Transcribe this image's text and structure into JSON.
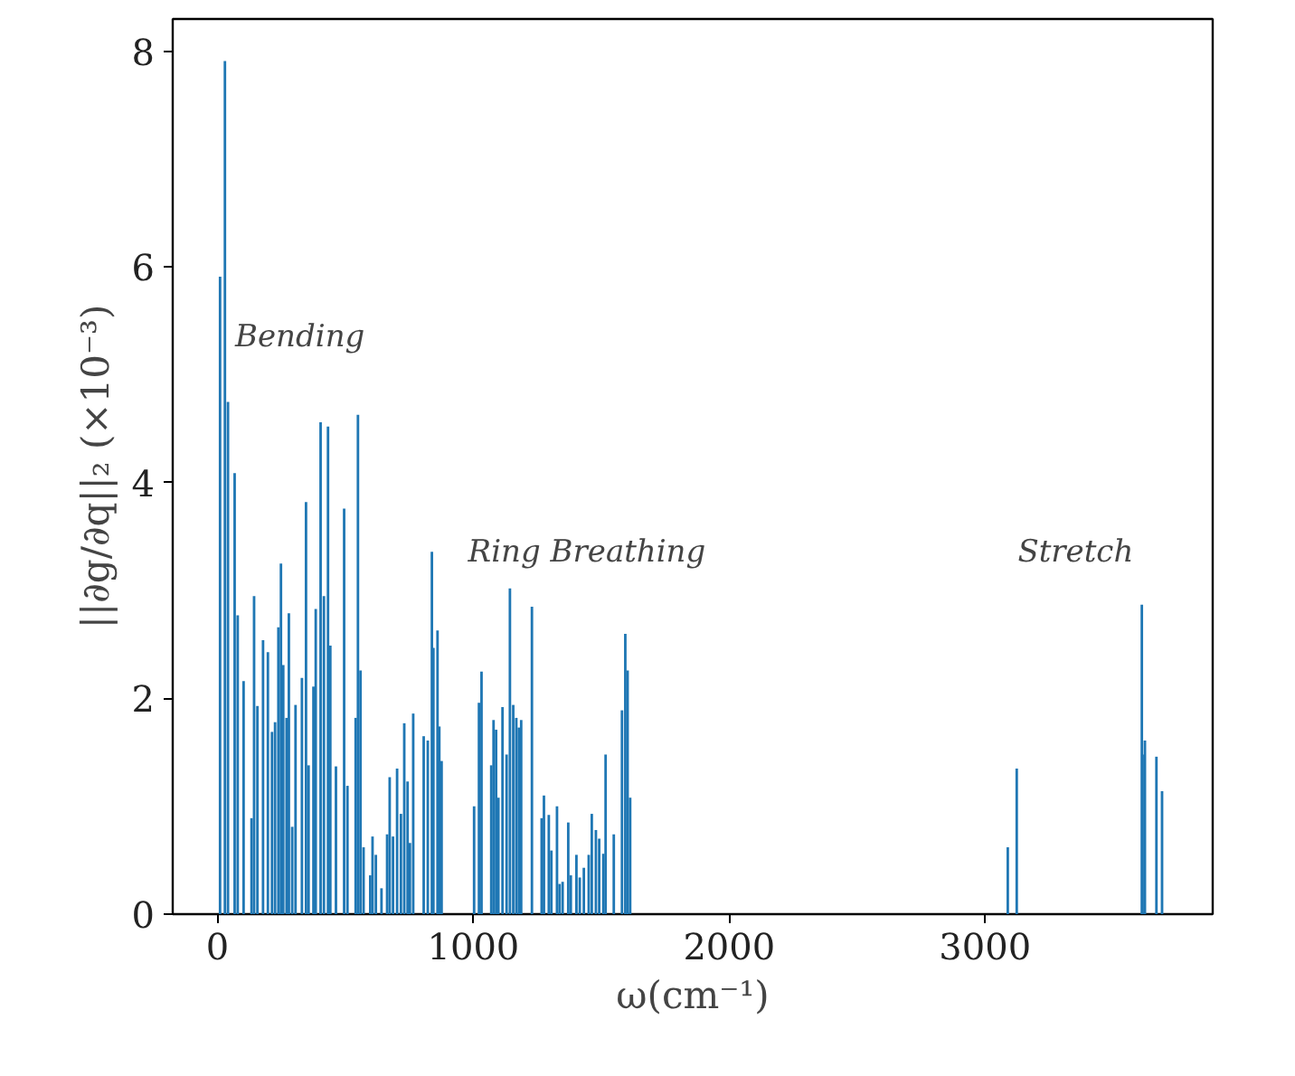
{
  "chart_data": {
    "type": "bar",
    "xlabel": "ω(cm⁻¹)",
    "ylabel": "||∂g/∂q||₂ (×10⁻³)",
    "x": [
      10,
      29,
      41,
      67,
      79,
      102,
      133,
      143,
      156,
      178,
      197,
      213,
      225,
      238,
      248,
      257,
      270,
      279,
      292,
      305,
      330,
      346,
      356,
      375,
      384,
      403,
      416,
      432,
      441,
      463,
      495,
      508,
      540,
      549,
      559,
      571,
      597,
      606,
      619,
      641,
      663,
      673,
      686,
      702,
      717,
      730,
      743,
      752,
      765,
      806,
      822,
      838,
      844,
      860,
      867,
      876,
      1003,
      1022,
      1032,
      1070,
      1079,
      1089,
      1098,
      1114,
      1130,
      1143,
      1156,
      1168,
      1178,
      1187,
      1229,
      1267,
      1276,
      1295,
      1305,
      1327,
      1337,
      1349,
      1371,
      1381,
      1403,
      1416,
      1432,
      1451,
      1463,
      1479,
      1492,
      1508,
      1517,
      1549,
      1581,
      1594,
      1603,
      1613,
      3089,
      3124,
      3613,
      3616,
      3625,
      3670,
      3692
    ],
    "series": [
      {
        "color": "#1f77b4",
        "values": [
          5.91,
          7.91,
          4.75,
          4.09,
          2.77,
          2.16,
          0.89,
          2.95,
          1.93,
          2.54,
          2.43,
          1.69,
          1.78,
          2.66,
          3.25,
          2.31,
          1.82,
          2.79,
          0.81,
          1.94,
          2.19,
          3.82,
          1.38,
          2.11,
          2.83,
          4.56,
          2.95,
          4.52,
          2.49,
          1.37,
          3.76,
          1.19,
          1.82,
          4.63,
          2.26,
          0.62,
          0.36,
          0.72,
          0.55,
          0.24,
          0.74,
          1.27,
          0.72,
          1.35,
          0.93,
          1.77,
          1.23,
          0.66,
          1.86,
          1.65,
          1.61,
          3.36,
          2.47,
          2.63,
          1.74,
          1.42,
          1.0,
          1.96,
          2.25,
          1.38,
          1.8,
          1.71,
          1.08,
          1.92,
          1.48,
          3.02,
          1.94,
          1.82,
          1.73,
          1.8,
          2.85,
          0.89,
          1.1,
          0.92,
          0.59,
          1.0,
          0.28,
          0.3,
          0.85,
          0.36,
          0.55,
          0.34,
          0.43,
          0.55,
          0.93,
          0.78,
          0.7,
          0.56,
          1.48,
          0.74,
          1.89,
          2.6,
          2.26,
          1.08,
          0.62,
          1.35,
          2.87,
          1.48,
          1.61,
          1.46,
          1.14
        ]
      }
    ],
    "xlim": [
      -175,
      3890
    ],
    "ylim": [
      0,
      8.3
    ],
    "xticks": [
      0,
      1000,
      2000,
      3000
    ],
    "yticks": [
      0,
      2,
      4,
      6,
      8
    ],
    "annotations": [
      "Bending",
      "Ring Breathing",
      "Stretch"
    ]
  }
}
